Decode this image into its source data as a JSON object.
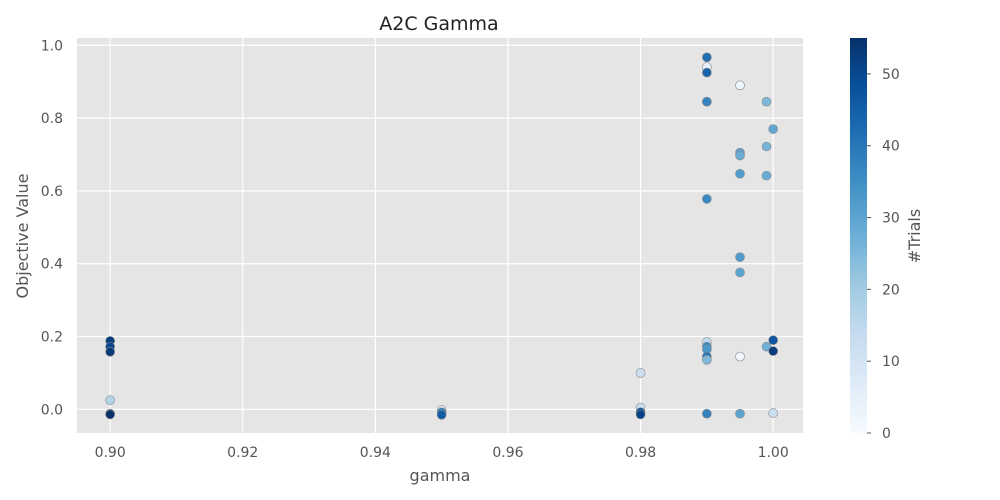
{
  "chart_data": {
    "type": "scatter",
    "title": "A2C Gamma",
    "xlabel": "gamma",
    "ylabel": "Objective Value",
    "xlim": [
      0.895,
      1.0045
    ],
    "ylim": [
      -0.065,
      1.02
    ],
    "xticks": [
      0.9,
      0.92,
      0.94,
      0.96,
      0.98,
      1.0
    ],
    "xtick_labels": [
      "0.90",
      "0.92",
      "0.94",
      "0.96",
      "0.98",
      "1.00"
    ],
    "yticks": [
      0.0,
      0.2,
      0.4,
      0.6,
      0.8,
      1.0
    ],
    "ytick_labels": [
      "0.0",
      "0.2",
      "0.4",
      "0.6",
      "0.8",
      "1.0"
    ],
    "grid": true,
    "colorbar": {
      "label": "#Trials",
      "range": [
        0,
        55
      ],
      "ticks": [
        0,
        10,
        20,
        30,
        40,
        50
      ],
      "tick_labels": [
        "0",
        "10",
        "20",
        "30",
        "40",
        "50"
      ],
      "colormap": "Blues"
    },
    "points": [
      {
        "x": 0.99,
        "y": 0.967,
        "trial": 42
      },
      {
        "x": 0.99,
        "y": 0.94,
        "trial": 5
      },
      {
        "x": 0.99,
        "y": 0.925,
        "trial": 44
      },
      {
        "x": 0.99,
        "y": 0.845,
        "trial": 38
      },
      {
        "x": 0.99,
        "y": 0.845,
        "trial": 37
      },
      {
        "x": 0.99,
        "y": 0.578,
        "trial": 36
      },
      {
        "x": 0.99,
        "y": 0.185,
        "trial": 15
      },
      {
        "x": 0.99,
        "y": 0.172,
        "trial": 36
      },
      {
        "x": 0.99,
        "y": 0.165,
        "trial": 33
      },
      {
        "x": 0.99,
        "y": 0.145,
        "trial": 40
      },
      {
        "x": 0.99,
        "y": 0.136,
        "trial": 25
      },
      {
        "x": 0.99,
        "y": -0.012,
        "trial": 38
      },
      {
        "x": 0.995,
        "y": 0.89,
        "trial": 3
      },
      {
        "x": 0.995,
        "y": 0.705,
        "trial": 30
      },
      {
        "x": 0.995,
        "y": 0.697,
        "trial": 28
      },
      {
        "x": 0.995,
        "y": 0.647,
        "trial": 32
      },
      {
        "x": 0.995,
        "y": 0.418,
        "trial": 32
      },
      {
        "x": 0.995,
        "y": 0.376,
        "trial": 30
      },
      {
        "x": 0.995,
        "y": 0.145,
        "trial": 2
      },
      {
        "x": 0.995,
        "y": -0.012,
        "trial": 30
      },
      {
        "x": 0.999,
        "y": 0.845,
        "trial": 25
      },
      {
        "x": 0.999,
        "y": 0.722,
        "trial": 26
      },
      {
        "x": 0.999,
        "y": 0.642,
        "trial": 28
      },
      {
        "x": 0.999,
        "y": 0.172,
        "trial": 27
      },
      {
        "x": 1.0,
        "y": 0.77,
        "trial": 29
      },
      {
        "x": 1.0,
        "y": 0.19,
        "trial": 47
      },
      {
        "x": 1.0,
        "y": 0.16,
        "trial": 52
      },
      {
        "x": 1.0,
        "y": -0.01,
        "trial": 12
      },
      {
        "x": 0.98,
        "y": 0.1,
        "trial": 12
      },
      {
        "x": 0.98,
        "y": 0.005,
        "trial": 13
      },
      {
        "x": 0.98,
        "y": -0.008,
        "trial": 48
      },
      {
        "x": 0.98,
        "y": -0.014,
        "trial": 51
      },
      {
        "x": 0.95,
        "y": -0.002,
        "trial": 6
      },
      {
        "x": 0.95,
        "y": -0.008,
        "trial": 38
      },
      {
        "x": 0.95,
        "y": -0.015,
        "trial": 46
      },
      {
        "x": 0.9,
        "y": 0.188,
        "trial": 52
      },
      {
        "x": 0.9,
        "y": 0.172,
        "trial": 50
      },
      {
        "x": 0.9,
        "y": 0.158,
        "trial": 53
      },
      {
        "x": 0.9,
        "y": 0.025,
        "trial": 17
      },
      {
        "x": 0.9,
        "y": -0.012,
        "trial": 54
      },
      {
        "x": 0.9,
        "y": -0.014,
        "trial": 55
      }
    ]
  }
}
